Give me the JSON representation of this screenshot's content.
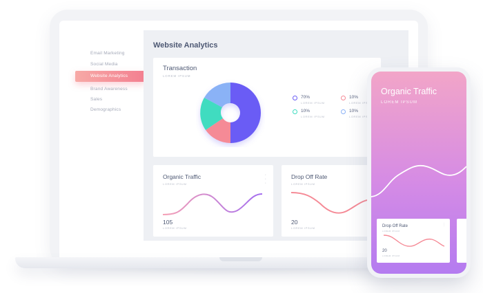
{
  "colors": {
    "accent": "#f37f90",
    "donut_purple": "#6a5cf5",
    "donut_pink": "#f58a96",
    "donut_teal": "#3fdcc0",
    "donut_blue": "#8ab2f6",
    "phone_gradient_top": "#f2a5c8",
    "phone_gradient_bottom": "#b47bf0"
  },
  "sidebar": {
    "items": [
      {
        "label": "Email Marketing",
        "active": false
      },
      {
        "label": "Social Media",
        "active": false
      },
      {
        "label": "Website Analytics",
        "active": true
      },
      {
        "label": "Brand Awareness",
        "active": false
      },
      {
        "label": "Sales",
        "active": false
      },
      {
        "label": "Demographics",
        "active": false
      }
    ]
  },
  "main": {
    "title": "Website Analytics",
    "transaction": {
      "title": "Transaction",
      "subtitle": "LOREM IPSUM",
      "legend": [
        {
          "value": "70%",
          "label": "LOREM IPSUM",
          "color": "#6a5cf5"
        },
        {
          "value": "10%",
          "label": "LOREM IPSUM",
          "color": "#f58a96"
        },
        {
          "value": "10%",
          "label": "LOREM IPSUM",
          "color": "#3fdcc0"
        },
        {
          "value": "10%",
          "label": "LOREM IPSUM",
          "color": "#8ab2f6"
        }
      ]
    },
    "organic_traffic": {
      "title": "Organic Traffic",
      "subtitle": "LOREM IPSUM",
      "value": "105",
      "value_label": "LOREM IPSUM",
      "menu_icon": "vertical-dots-icon"
    },
    "drop_off_rate": {
      "title": "Drop Off Rate",
      "subtitle": "LOREM IPSUM",
      "value": "20",
      "value_label": "LOREM IPSUM"
    }
  },
  "phone": {
    "title": "Organic Traffic",
    "subtitle": "LOREM IPSUM",
    "card": {
      "title": "Drop Off Rate",
      "subtitle": "LOREM IPSUM",
      "value": "20",
      "value_label": "LOREM IPSUM",
      "menu_icon": "vertical-dots-icon"
    }
  }
}
